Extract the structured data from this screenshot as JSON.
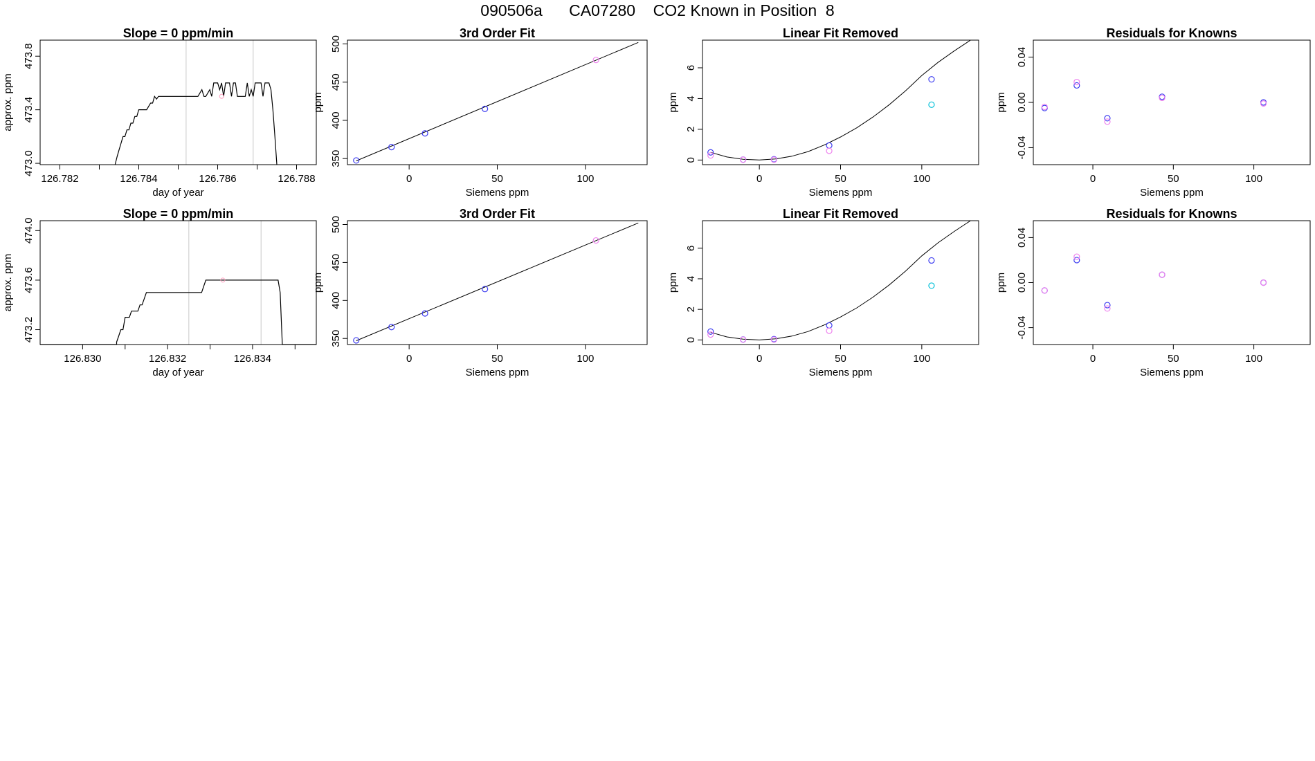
{
  "page_title": "090506a      CA07280    CO2 Known in Position  8",
  "colors": {
    "axis": "#000000",
    "line": "#000000",
    "vline": "#c8c8c8",
    "violet": "#ee82ee",
    "blue": "#3c3cf0",
    "purple": "#a020f0",
    "cyan": "#00bfd8",
    "pink": "#ff9fc0"
  },
  "chart_data": [
    {
      "type": "line",
      "title": "Slope =  0  ppm/min",
      "xlabel": "day of year",
      "ylabel": "approx. ppm",
      "xlim": [
        126.7815,
        126.7885
      ],
      "ylim": [
        472.99,
        473.92
      ],
      "xticks": [
        126.782,
        126.783,
        126.784,
        126.785,
        126.786,
        126.787,
        126.788
      ],
      "xtick_labels": [
        "126.782",
        "",
        "126.784",
        "",
        "126.786",
        "",
        "126.788"
      ],
      "yticks": [
        473.0,
        473.4,
        473.8
      ],
      "ytick_labels": [
        "473.0",
        "473.4",
        "473.8"
      ],
      "vlines": [
        126.7852,
        126.7869
      ],
      "marker": {
        "x": 126.7861,
        "y": 473.5,
        "color": "pink"
      },
      "series": [
        {
          "values": [
            [
              126.7834,
              472.99
            ],
            [
              126.78345,
              473.05
            ],
            [
              126.7835,
              473.1
            ],
            [
              126.78355,
              473.15
            ],
            [
              126.7836,
              473.2
            ],
            [
              126.78365,
              473.2
            ],
            [
              126.7837,
              473.25
            ],
            [
              126.78375,
              473.25
            ],
            [
              126.7838,
              473.3
            ],
            [
              126.78385,
              473.3
            ],
            [
              126.7839,
              473.35
            ],
            [
              126.78395,
              473.35
            ],
            [
              126.784,
              473.4
            ],
            [
              126.7841,
              473.4
            ],
            [
              126.7842,
              473.4
            ],
            [
              126.7843,
              473.45
            ],
            [
              126.78435,
              473.45
            ],
            [
              126.7844,
              473.5
            ],
            [
              126.78445,
              473.48
            ],
            [
              126.7845,
              473.5
            ],
            [
              126.785,
              473.5
            ],
            [
              126.7855,
              473.5
            ],
            [
              126.7856,
              473.55
            ],
            [
              126.78565,
              473.5
            ],
            [
              126.7857,
              473.5
            ],
            [
              126.7858,
              473.55
            ],
            [
              126.78585,
              473.5
            ],
            [
              126.7859,
              473.6
            ],
            [
              126.786,
              473.6
            ],
            [
              126.78605,
              473.55
            ],
            [
              126.7861,
              473.6
            ],
            [
              126.78615,
              473.5
            ],
            [
              126.7862,
              473.6
            ],
            [
              126.7863,
              473.6
            ],
            [
              126.78635,
              473.5
            ],
            [
              126.7864,
              473.6
            ],
            [
              126.78645,
              473.6
            ],
            [
              126.7865,
              473.5
            ],
            [
              126.7866,
              473.5
            ],
            [
              126.7867,
              473.5
            ],
            [
              126.78675,
              473.6
            ],
            [
              126.7868,
              473.5
            ],
            [
              126.78685,
              473.55
            ],
            [
              126.7869,
              473.5
            ],
            [
              126.78695,
              473.6
            ],
            [
              126.787,
              473.6
            ],
            [
              126.7871,
              473.6
            ],
            [
              126.78715,
              473.5
            ],
            [
              126.7872,
              473.6
            ],
            [
              126.7873,
              473.6
            ],
            [
              126.78735,
              473.55
            ],
            [
              126.7874,
              473.4
            ],
            [
              126.78745,
              473.2
            ],
            [
              126.7875,
              472.99
            ]
          ]
        }
      ]
    },
    {
      "type": "scatter",
      "title": "3rd Order Fit",
      "xlabel": "Siemens ppm",
      "ylabel": "ppm",
      "xlim": [
        -35,
        135
      ],
      "ylim": [
        342,
        505
      ],
      "xticks": [
        0,
        50,
        100
      ],
      "xtick_labels": [
        "0",
        "50",
        "100"
      ],
      "yticks": [
        350,
        400,
        450,
        500
      ],
      "ytick_labels": [
        "350",
        "400",
        "450",
        "500"
      ],
      "fit_line": [
        [
          -30,
          347
        ],
        [
          130,
          502
        ]
      ],
      "series": [
        {
          "color": "blue",
          "values": [
            [
              -30,
              347.5
            ],
            [
              -10,
              365
            ],
            [
              9,
              383
            ],
            [
              43,
              415
            ]
          ]
        },
        {
          "color": "violet",
          "values": [
            [
              106,
              479
            ]
          ]
        }
      ]
    },
    {
      "type": "scatter",
      "title": "Linear Fit Removed",
      "xlabel": "Siemens ppm",
      "ylabel": "ppm",
      "xlim": [
        -35,
        135
      ],
      "ylim": [
        -0.3,
        7.8
      ],
      "xticks": [
        0,
        50,
        100
      ],
      "xtick_labels": [
        "0",
        "50",
        "100"
      ],
      "yticks": [
        0,
        2,
        4,
        6
      ],
      "ytick_labels": [
        "0",
        "2",
        "4",
        "6"
      ],
      "fit_curve": [
        [
          -30,
          0.5
        ],
        [
          -20,
          0.2
        ],
        [
          -10,
          0.05
        ],
        [
          0,
          0
        ],
        [
          10,
          0.07
        ],
        [
          20,
          0.25
        ],
        [
          30,
          0.55
        ],
        [
          40,
          0.98
        ],
        [
          50,
          1.5
        ],
        [
          60,
          2.1
        ],
        [
          70,
          2.8
        ],
        [
          80,
          3.6
        ],
        [
          90,
          4.5
        ],
        [
          100,
          5.5
        ],
        [
          110,
          6.35
        ],
        [
          120,
          7.1
        ],
        [
          130,
          7.8
        ]
      ],
      "series": [
        {
          "color": "blue",
          "values": [
            [
              -30,
              0.5
            ],
            [
              -10,
              0.03
            ],
            [
              9,
              0.05
            ],
            [
              43,
              0.95
            ],
            [
              106,
              5.25
            ]
          ]
        },
        {
          "color": "violet",
          "values": [
            [
              -30,
              0.3
            ],
            [
              -10,
              0.02
            ],
            [
              9,
              0.02
            ],
            [
              43,
              0.6
            ]
          ]
        },
        {
          "color": "cyan",
          "values": [
            [
              106,
              3.6
            ]
          ]
        }
      ]
    },
    {
      "type": "scatter",
      "title": "Residuals for Knowns",
      "xlabel": "Siemens ppm",
      "ylabel": "ppm",
      "xlim": [
        -37,
        135
      ],
      "ylim": [
        -0.055,
        0.055
      ],
      "xticks": [
        0,
        50,
        100
      ],
      "xtick_labels": [
        "0",
        "50",
        "100"
      ],
      "yticks": [
        -0.04,
        0,
        0.04
      ],
      "ytick_labels": [
        "-0.04",
        "0.00",
        "0.04"
      ],
      "series": [
        {
          "color": "blue",
          "values": [
            [
              -30,
              -0.005
            ],
            [
              -10,
              0.015
            ],
            [
              9,
              -0.014
            ],
            [
              43,
              0.005
            ],
            [
              106,
              0.0
            ]
          ]
        },
        {
          "color": "violet",
          "values": [
            [
              -30,
              -0.004
            ],
            [
              -10,
              0.018
            ],
            [
              9,
              -0.017
            ],
            [
              43,
              0.004
            ],
            [
              106,
              -0.001
            ]
          ]
        }
      ]
    },
    {
      "type": "line",
      "title": "Slope =  0  ppm/min",
      "xlabel": "day of year",
      "ylabel": "approx. ppm",
      "xlim": [
        126.829,
        126.8355
      ],
      "ylim": [
        473.08,
        474.08
      ],
      "xticks": [
        126.83,
        126.831,
        126.832,
        126.833,
        126.834,
        126.835
      ],
      "xtick_labels": [
        "126.830",
        "",
        "126.832",
        "",
        "126.834",
        ""
      ],
      "yticks": [
        473.2,
        473.6,
        474.0
      ],
      "ytick_labels": [
        "473.2",
        "473.6",
        "474.0"
      ],
      "vlines": [
        126.8325,
        126.8342
      ],
      "marker": {
        "x": 126.8333,
        "y": 473.6,
        "color": "pink"
      },
      "series": [
        {
          "values": [
            [
              126.829,
              473.08
            ],
            [
              126.8308,
              473.08
            ],
            [
              126.8308,
              473.1
            ],
            [
              126.83085,
              473.15
            ],
            [
              126.8309,
              473.2
            ],
            [
              126.83095,
              473.2
            ],
            [
              126.831,
              473.3
            ],
            [
              126.8311,
              473.3
            ],
            [
              126.83115,
              473.35
            ],
            [
              126.8312,
              473.35
            ],
            [
              126.8313,
              473.35
            ],
            [
              126.83135,
              473.4
            ],
            [
              126.8314,
              473.4
            ],
            [
              126.83145,
              473.45
            ],
            [
              126.8315,
              473.5
            ],
            [
              126.8316,
              473.5
            ],
            [
              126.832,
              473.5
            ],
            [
              126.8325,
              473.5
            ],
            [
              126.8328,
              473.5
            ],
            [
              126.83285,
              473.55
            ],
            [
              126.8329,
              473.6
            ],
            [
              126.8335,
              473.6
            ],
            [
              126.834,
              473.6
            ],
            [
              126.8346,
              473.6
            ],
            [
              126.83465,
              473.5
            ],
            [
              126.8347,
              473.08
            ],
            [
              126.8355,
              473.08
            ]
          ]
        }
      ]
    },
    {
      "type": "scatter",
      "title": "3rd Order Fit",
      "xlabel": "Siemens ppm",
      "ylabel": "ppm",
      "xlim": [
        -35,
        135
      ],
      "ylim": [
        342,
        505
      ],
      "xticks": [
        0,
        50,
        100
      ],
      "xtick_labels": [
        "0",
        "50",
        "100"
      ],
      "yticks": [
        350,
        400,
        450,
        500
      ],
      "ytick_labels": [
        "350",
        "400",
        "450",
        "500"
      ],
      "fit_line": [
        [
          -30,
          347
        ],
        [
          130,
          502
        ]
      ],
      "series": [
        {
          "color": "blue",
          "values": [
            [
              -30,
              347.5
            ],
            [
              -10,
              365
            ],
            [
              9,
              383
            ],
            [
              43,
              415
            ]
          ]
        },
        {
          "color": "violet",
          "values": [
            [
              106,
              479
            ]
          ]
        }
      ]
    },
    {
      "type": "scatter",
      "title": "Linear Fit Removed",
      "xlabel": "Siemens ppm",
      "ylabel": "ppm",
      "xlim": [
        -35,
        135
      ],
      "ylim": [
        -0.3,
        7.8
      ],
      "xticks": [
        0,
        50,
        100
      ],
      "xtick_labels": [
        "0",
        "50",
        "100"
      ],
      "yticks": [
        0,
        2,
        4,
        6
      ],
      "ytick_labels": [
        "0",
        "2",
        "4",
        "6"
      ],
      "fit_curve": [
        [
          -30,
          0.5
        ],
        [
          -20,
          0.2
        ],
        [
          -10,
          0.05
        ],
        [
          0,
          0
        ],
        [
          10,
          0.07
        ],
        [
          20,
          0.25
        ],
        [
          30,
          0.55
        ],
        [
          40,
          0.98
        ],
        [
          50,
          1.5
        ],
        [
          60,
          2.1
        ],
        [
          70,
          2.8
        ],
        [
          80,
          3.6
        ],
        [
          90,
          4.5
        ],
        [
          100,
          5.5
        ],
        [
          110,
          6.35
        ],
        [
          120,
          7.1
        ],
        [
          130,
          7.8
        ]
      ],
      "series": [
        {
          "color": "blue",
          "values": [
            [
              -30,
              0.55
            ],
            [
              -10,
              0.03
            ],
            [
              9,
              0.05
            ],
            [
              43,
              0.95
            ],
            [
              106,
              5.2
            ]
          ]
        },
        {
          "color": "violet",
          "values": [
            [
              -30,
              0.35
            ],
            [
              -10,
              0.02
            ],
            [
              9,
              0.02
            ],
            [
              43,
              0.6
            ]
          ]
        },
        {
          "color": "cyan",
          "values": [
            [
              106,
              3.55
            ]
          ]
        }
      ]
    },
    {
      "type": "scatter",
      "title": "Residuals for Knowns",
      "xlabel": "Siemens ppm",
      "ylabel": "ppm",
      "xlim": [
        -37,
        135
      ],
      "ylim": [
        -0.055,
        0.055
      ],
      "xticks": [
        0,
        50,
        100
      ],
      "xtick_labels": [
        "0",
        "50",
        "100"
      ],
      "yticks": [
        -0.04,
        0,
        0.04
      ],
      "ytick_labels": [
        "-0.04",
        "0.00",
        "0.04"
      ],
      "series": [
        {
          "color": "blue",
          "values": [
            [
              -30,
              -0.007
            ],
            [
              -10,
              0.02
            ],
            [
              9,
              -0.02
            ],
            [
              43,
              0.007
            ],
            [
              106,
              0.0
            ]
          ]
        },
        {
          "color": "violet",
          "values": [
            [
              -30,
              -0.007
            ],
            [
              -10,
              0.023
            ],
            [
              9,
              -0.023
            ],
            [
              43,
              0.007
            ],
            [
              106,
              0.0
            ]
          ]
        }
      ]
    }
  ]
}
